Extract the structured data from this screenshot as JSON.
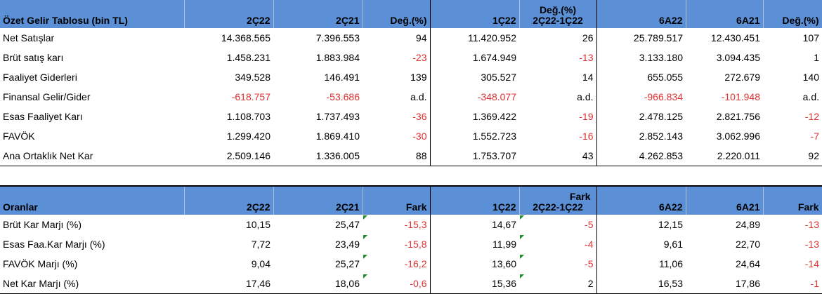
{
  "income": {
    "header": {
      "title": "Özet Gelir Tablosu (bin TL)",
      "col1": "2Ç22",
      "col2": "2Ç21",
      "col3": "Değ.(%)",
      "col4": "1Ç22",
      "col5_top": "Değ.(%)",
      "col5_bottom": "2Ç22-1Ç22",
      "col6": "6A22",
      "col7": "6A21",
      "col8": "Değ.(%)"
    },
    "rows": [
      {
        "label": "Net Satışlar",
        "v": [
          "14.368.565",
          "7.396.553",
          "94",
          "11.420.952",
          "26",
          "25.789.517",
          "12.430.451",
          "107"
        ]
      },
      {
        "label": "Brüt satış karı",
        "v": [
          "1.458.231",
          "1.883.984",
          "-23",
          "1.674.949",
          "-13",
          "3.133.180",
          "3.094.435",
          "1"
        ]
      },
      {
        "label": "Faaliyet Giderleri",
        "v": [
          "349.528",
          "146.491",
          "139",
          "305.527",
          "14",
          "655.055",
          "272.679",
          "140"
        ]
      },
      {
        "label": "Finansal Gelir/Gider",
        "v": [
          "-618.757",
          "-53.686",
          "a.d.",
          "-348.077",
          "a.d.",
          "-966.834",
          "-101.948",
          "a.d."
        ]
      },
      {
        "label": "Esas Faaliyet Karı",
        "v": [
          "1.108.703",
          "1.737.493",
          "-36",
          "1.369.422",
          "-19",
          "2.478.125",
          "2.821.756",
          "-12"
        ]
      },
      {
        "label": "FAVÖK",
        "v": [
          "1.299.420",
          "1.869.410",
          "-30",
          "1.552.723",
          "-16",
          "2.852.143",
          "3.062.996",
          "-7"
        ]
      },
      {
        "label": "Ana Ortaklık Net Kar",
        "v": [
          "2.509.146",
          "1.336.005",
          "88",
          "1.753.707",
          "43",
          "4.262.853",
          "2.220.011",
          "92"
        ]
      }
    ]
  },
  "ratios": {
    "header": {
      "title": "Oranlar",
      "col1": "2Ç22",
      "col2": "2Ç21",
      "col3": "Fark",
      "col4": "1Ç22",
      "col5_top": "Fark",
      "col5_bottom": "2Ç22-1Ç22",
      "col6": "6A22",
      "col7": "6A21",
      "col8": "Fark"
    },
    "rows": [
      {
        "label": "Brüt Kar Marjı (%)",
        "v": [
          "10,15",
          "25,47",
          "-15,3",
          "14,67",
          "-5",
          "12,15",
          "24,89",
          "-13"
        ]
      },
      {
        "label": "Esas Faa.Kar Marjı (%)",
        "v": [
          "7,72",
          "23,49",
          "-15,8",
          "11,99",
          "-4",
          "9,61",
          "22,70",
          "-13"
        ]
      },
      {
        "label": "FAVÖK Marjı (%)",
        "v": [
          "9,04",
          "25,27",
          "-16,2",
          "13,60",
          "-5",
          "11,06",
          "24,64",
          "-14"
        ]
      },
      {
        "label": "Net Kar Marjı (%)",
        "v": [
          "17,46",
          "18,06",
          "-0,6",
          "15,36",
          "2",
          "16,53",
          "17,86",
          "-1"
        ]
      }
    ]
  },
  "colors": {
    "header_bg": "#5b8fd6",
    "negative": "#e03030",
    "flag": "#1f8a2e"
  }
}
